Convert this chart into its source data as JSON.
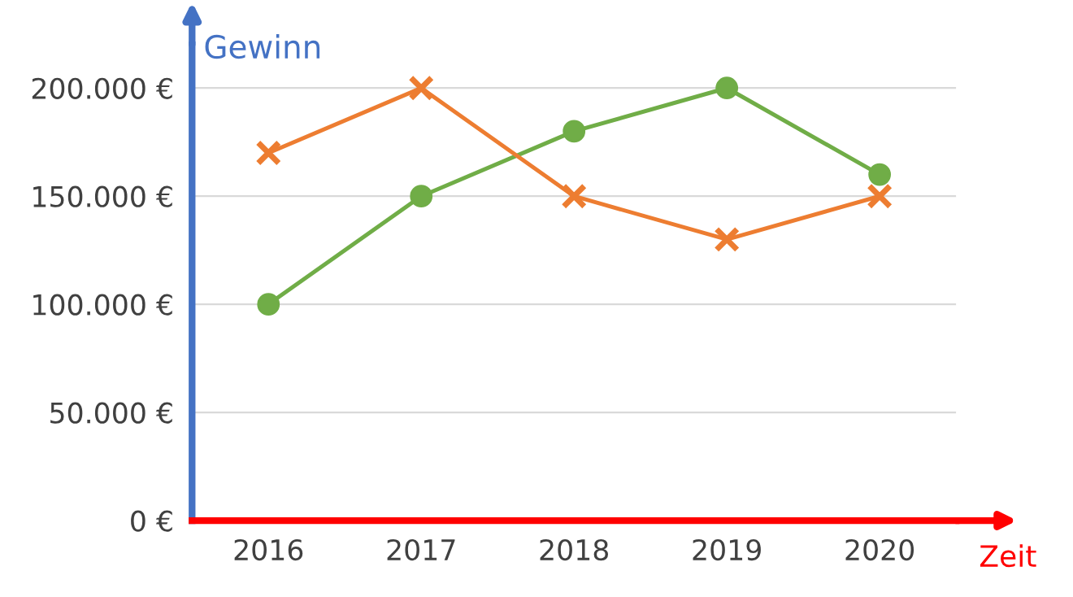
{
  "chart_data": {
    "type": "line",
    "xlabel": "Zeit",
    "ylabel": "Gewinn",
    "categories": [
      "2016",
      "2017",
      "2018",
      "2019",
      "2020"
    ],
    "series": [
      {
        "color": "#70ad47",
        "marker": "circle",
        "values": [
          100000,
          150000,
          180000,
          200000,
          160000
        ]
      },
      {
        "color": "#ed7d31",
        "marker": "cross",
        "values": [
          170000,
          200000,
          150000,
          130000,
          150000
        ]
      }
    ],
    "ylim": [
      0,
      220000
    ],
    "yticks": [
      {
        "value": 0,
        "label": "0 €"
      },
      {
        "value": 50000,
        "label": "50.000 €"
      },
      {
        "value": 100000,
        "label": "100.000 €"
      },
      {
        "value": 150000,
        "label": "150.000 €"
      },
      {
        "value": 200000,
        "label": "200.000 €"
      }
    ],
    "grid": "y",
    "line_style": "solid"
  }
}
